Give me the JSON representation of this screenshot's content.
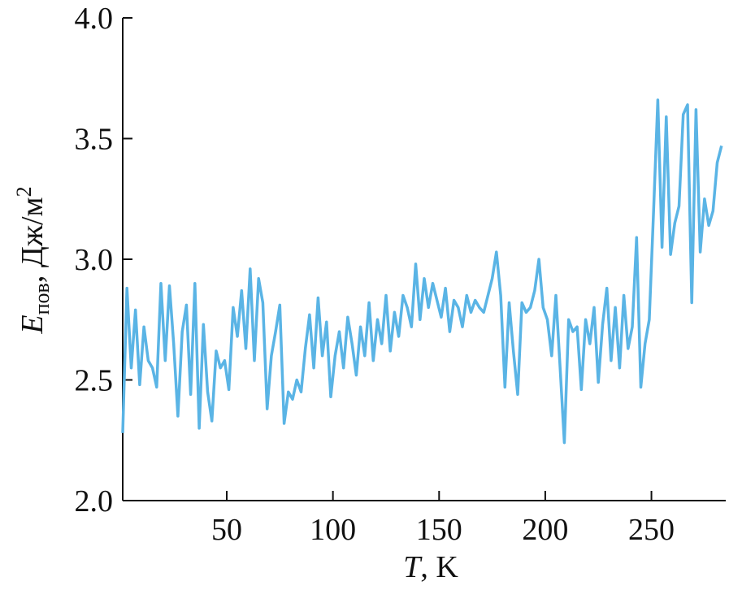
{
  "chart_data": {
    "type": "line",
    "xlabel": {
      "symbol": "T",
      "unit": ", K"
    },
    "ylabel": {
      "symbol": "E",
      "subscript": "пов",
      "unit": ", Дж/м",
      "superscript": "2"
    },
    "xlim": [
      1,
      285
    ],
    "ylim": [
      2.0,
      4.0
    ],
    "xticks": [
      50,
      100,
      150,
      200,
      250
    ],
    "yticks": [
      {
        "value": 2.0,
        "label": "2.0"
      },
      2.5,
      {
        "value": 3.0,
        "label": "3.0"
      },
      3.5,
      {
        "value": 4.0,
        "label": "4.0"
      }
    ],
    "x": [
      1,
      3,
      5,
      7,
      9,
      11,
      13,
      15,
      17,
      19,
      21,
      23,
      25,
      27,
      29,
      31,
      33,
      35,
      37,
      39,
      41,
      43,
      45,
      47,
      49,
      51,
      53,
      55,
      57,
      59,
      61,
      63,
      65,
      67,
      69,
      71,
      73,
      75,
      77,
      79,
      81,
      83,
      85,
      87,
      89,
      91,
      93,
      95,
      97,
      99,
      101,
      103,
      105,
      107,
      109,
      111,
      113,
      115,
      117,
      119,
      121,
      123,
      125,
      127,
      129,
      131,
      133,
      135,
      137,
      139,
      141,
      143,
      145,
      147,
      149,
      151,
      153,
      155,
      157,
      159,
      161,
      163,
      165,
      167,
      169,
      171,
      173,
      175,
      177,
      179,
      181,
      183,
      185,
      187,
      189,
      191,
      193,
      195,
      197,
      199,
      201,
      203,
      205,
      207,
      209,
      211,
      213,
      215,
      217,
      219,
      221,
      223,
      225,
      227,
      229,
      231,
      233,
      235,
      237,
      239,
      241,
      243,
      245,
      247,
      249,
      251,
      253,
      255,
      257,
      259,
      261,
      263,
      265,
      267,
      269,
      271,
      273,
      275,
      277,
      279,
      281,
      283
    ],
    "series": [
      {
        "color": "#5ab4e5",
        "values": [
          2.28,
          2.88,
          2.55,
          2.79,
          2.48,
          2.72,
          2.58,
          2.55,
          2.47,
          2.9,
          2.58,
          2.89,
          2.65,
          2.35,
          2.7,
          2.81,
          2.44,
          2.9,
          2.3,
          2.73,
          2.45,
          2.33,
          2.62,
          2.55,
          2.58,
          2.46,
          2.8,
          2.68,
          2.87,
          2.63,
          2.96,
          2.58,
          2.92,
          2.82,
          2.38,
          2.6,
          2.7,
          2.81,
          2.32,
          2.45,
          2.42,
          2.5,
          2.45,
          2.63,
          2.77,
          2.55,
          2.84,
          2.6,
          2.74,
          2.43,
          2.6,
          2.7,
          2.55,
          2.76,
          2.65,
          2.52,
          2.72,
          2.6,
          2.82,
          2.58,
          2.75,
          2.65,
          2.85,
          2.62,
          2.78,
          2.68,
          2.85,
          2.8,
          2.72,
          2.98,
          2.75,
          2.92,
          2.8,
          2.9,
          2.83,
          2.76,
          2.88,
          2.7,
          2.83,
          2.8,
          2.72,
          2.85,
          2.78,
          2.83,
          2.8,
          2.78,
          2.85,
          2.92,
          3.03,
          2.85,
          2.47,
          2.82,
          2.62,
          2.44,
          2.82,
          2.78,
          2.8,
          2.87,
          3.0,
          2.8,
          2.75,
          2.6,
          2.85,
          2.55,
          2.24,
          2.75,
          2.7,
          2.72,
          2.46,
          2.75,
          2.65,
          2.8,
          2.49,
          2.73,
          2.88,
          2.58,
          2.8,
          2.55,
          2.85,
          2.63,
          2.72,
          3.09,
          2.47,
          2.65,
          2.75,
          3.2,
          3.66,
          3.05,
          3.59,
          3.02,
          3.15,
          3.22,
          3.6,
          3.64,
          2.82,
          3.62,
          3.03,
          3.25,
          3.14,
          3.2,
          3.4,
          3.47
        ]
      }
    ]
  }
}
